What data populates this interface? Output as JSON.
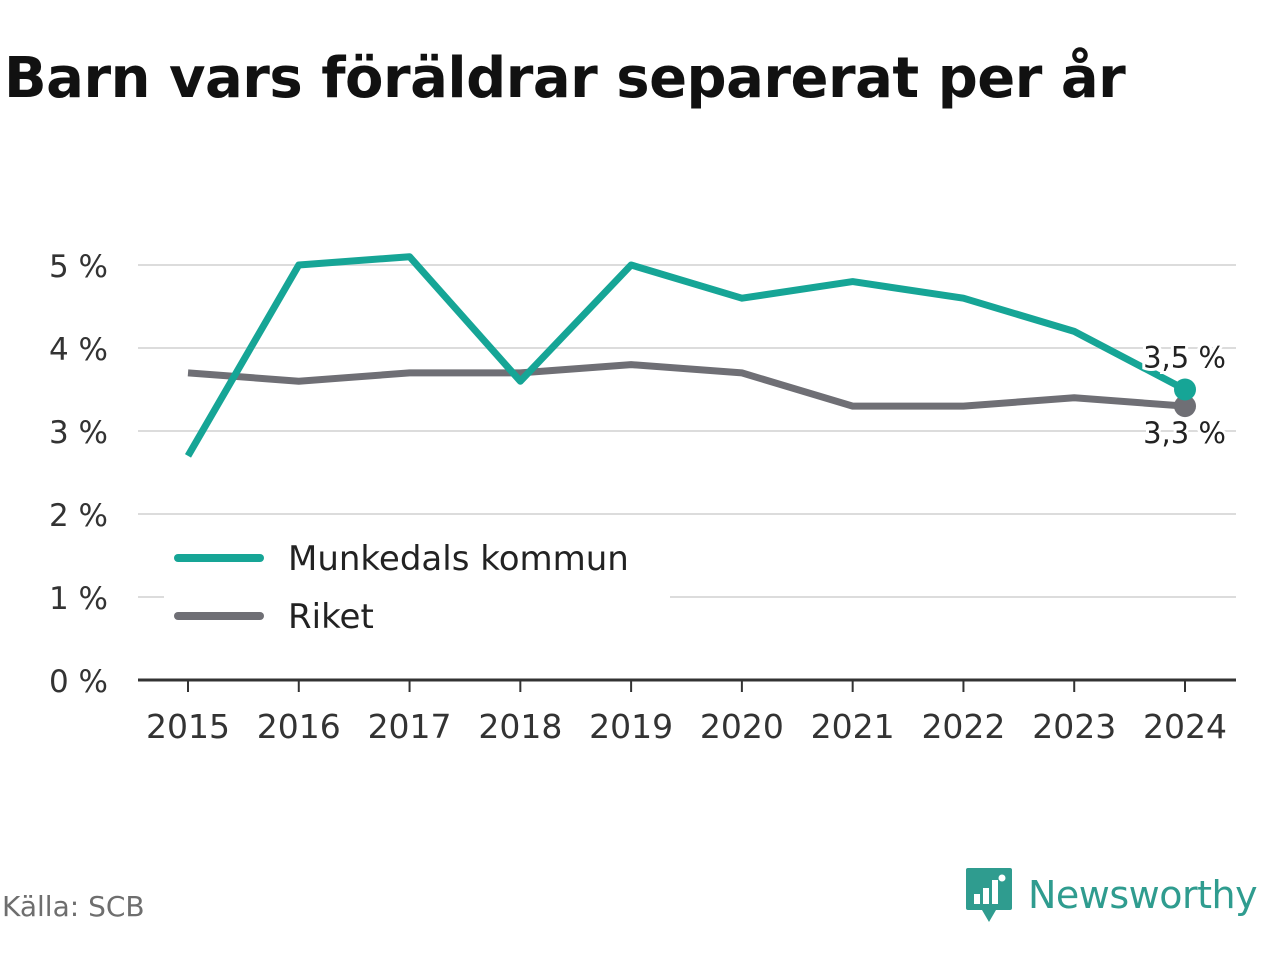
{
  "title": "Barn vars föräldrar separerat per år",
  "source": "Källa: SCB",
  "brand": {
    "name": "Newsworthy",
    "icon": "newsworthy-logo-icon",
    "color": "#2f9c8f"
  },
  "chart_data": {
    "type": "line",
    "title": "Barn vars föräldrar separerat per år",
    "xlabel": "",
    "ylabel": "",
    "x": [
      "2015",
      "2016",
      "2017",
      "2018",
      "2019",
      "2020",
      "2021",
      "2022",
      "2023",
      "2024"
    ],
    "ylim": [
      0,
      5.2
    ],
    "yticks": [
      0,
      1,
      2,
      3,
      4,
      5
    ],
    "ytick_labels": [
      "0 %",
      "1 %",
      "2 %",
      "3 %",
      "4 %",
      "5 %"
    ],
    "grid": true,
    "legend_position": "lower-left",
    "series": [
      {
        "name": "Munkedals kommun",
        "color": "#16a596",
        "values": [
          2.7,
          5.0,
          5.1,
          3.6,
          5.0,
          4.6,
          4.8,
          4.6,
          4.2,
          3.5
        ],
        "end_label": "3,5 %"
      },
      {
        "name": "Riket",
        "color": "#6f6f75",
        "values": [
          3.7,
          3.6,
          3.7,
          3.7,
          3.8,
          3.7,
          3.3,
          3.3,
          3.4,
          3.3
        ],
        "end_label": "3,3 %"
      }
    ]
  }
}
